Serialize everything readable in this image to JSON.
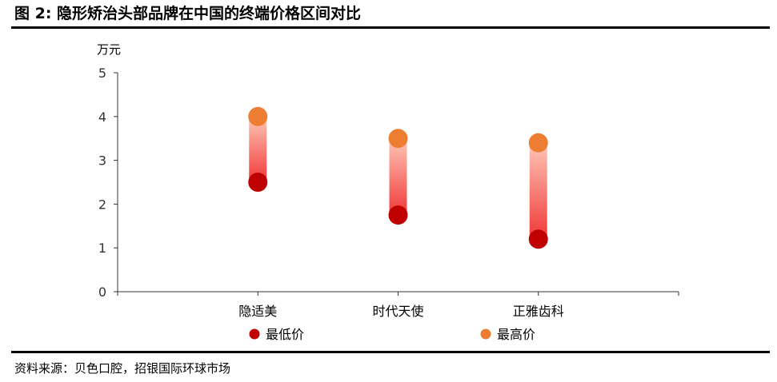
{
  "header": {
    "title": "图 2: 隐形矫治头部品牌在中国的终端价格区间对比"
  },
  "footer": {
    "source": "资料来源：贝色口腔，招银国际环球市场"
  },
  "colors": {
    "low": "#C00000",
    "high": "#ED7D31",
    "bar_top": "#FFC7B8",
    "bar_bottom": "#F03838"
  },
  "chart_data": {
    "type": "range_dot",
    "unit_label": "万元",
    "categories": [
      "隐适美",
      "时代天使",
      "正雅齿科"
    ],
    "series": [
      {
        "name": "最低价",
        "values": [
          2.5,
          1.75,
          1.2
        ]
      },
      {
        "name": "最高价",
        "values": [
          4.0,
          3.5,
          3.4
        ]
      }
    ],
    "ylim": [
      0,
      5
    ],
    "yticks": [
      "0",
      "1",
      "2",
      "3",
      "4",
      "5"
    ],
    "grid": false,
    "legend_position": "bottom"
  }
}
